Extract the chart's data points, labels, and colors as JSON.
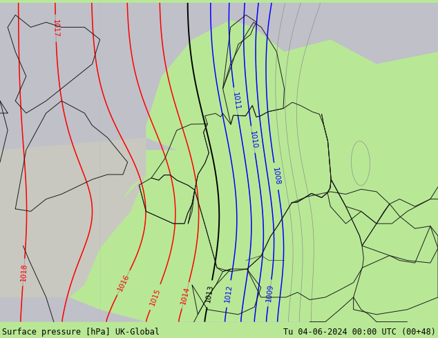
{
  "title_left": "Surface pressure [hPa] UK-Global",
  "title_right": "Tu 04-06-2024 00:00 UTC (00+48)",
  "figsize": [
    6.34,
    4.9
  ],
  "dpi": 100,
  "lon_min": -6.5,
  "lon_max": 22.0,
  "lat_min": 45.5,
  "lat_max": 58.5,
  "label_fontsize": 7.5,
  "title_fontsize": 8.5
}
